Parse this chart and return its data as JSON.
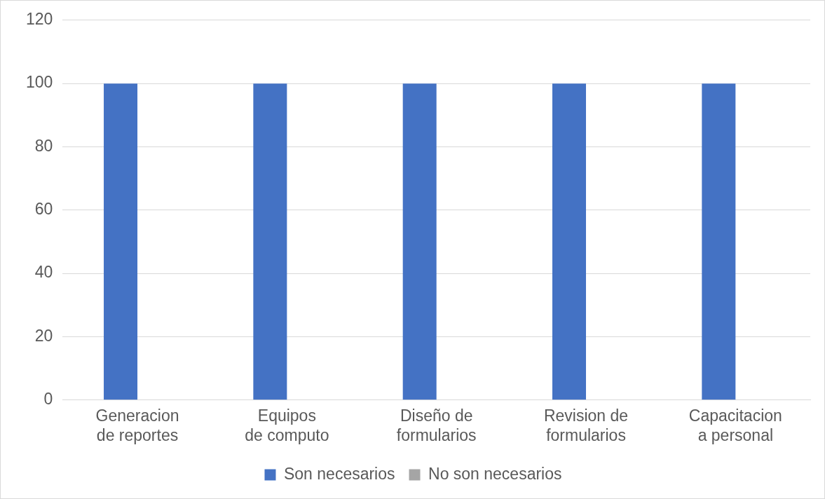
{
  "chart_data": {
    "type": "bar",
    "categories": [
      "Generacion de reportes",
      "Equipos de computo",
      "Diseño de formularios",
      "Revision de formularios",
      "Capacitacion a personal"
    ],
    "series": [
      {
        "name": "Son necesarios",
        "color": "#4472c4",
        "values": [
          100,
          100,
          100,
          100,
          100
        ]
      },
      {
        "name": "No son necesarios",
        "color": "#a5a5a5",
        "values": [
          0,
          0,
          0,
          0,
          0
        ]
      }
    ],
    "ylim": [
      0,
      120
    ],
    "yticks": [
      0,
      20,
      40,
      60,
      80,
      100,
      120
    ],
    "grid": "y",
    "legend": "bottom"
  }
}
